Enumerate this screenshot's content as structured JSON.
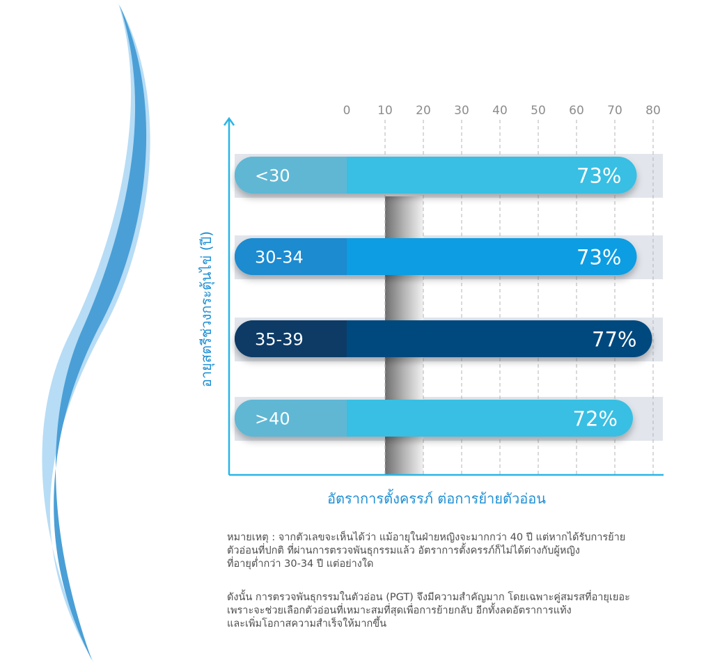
{
  "chart_data": {
    "type": "bar",
    "orientation": "horizontal",
    "categories": [
      "<30",
      "30-34",
      "35-39",
      ">40"
    ],
    "values": [
      73,
      73,
      77,
      72
    ],
    "value_labels": [
      "73%",
      "73%",
      "77%",
      "72%"
    ],
    "xlim": [
      0,
      80
    ],
    "x_ticks": [
      "0",
      "10",
      "20",
      "30",
      "40",
      "50",
      "60",
      "70",
      "80"
    ],
    "xlabel": "อัตราการตั้งครรภ์ ต่อการย้ายตัวอ่อน",
    "ylabel": "อายุสตรีช่วงกระตุ้นไข่ (ปี)",
    "grid": true,
    "colors": {
      "axis": "#29b5e8",
      "tick_text": "#8c8c8c",
      "track": "#e2e6ec",
      "grid": "#b3b3b3",
      "bars": [
        {
          "label_bg": "#5fb7d4",
          "bar": "#38bfe3"
        },
        {
          "label_bg": "#1c8bd0",
          "bar": "#0f9de2"
        },
        {
          "label_bg": "#073a66",
          "bar": "#064a7e"
        },
        {
          "label_bg": "#5fb7d4",
          "bar": "#38bfe3"
        }
      ],
      "wave_outer": "#b7dcf5",
      "wave_inner": "#4a9fd6"
    }
  },
  "notes": {
    "paragraph1": [
      "หมายเหตุ : จากตัวเลขจะเห็นได้ว่า แม้อายุในฝ่ายหญิงจะมากกว่า 40 ปี แต่หากได้รับการย้าย",
      "ตัวอ่อนที่ปกติ ที่ผ่านการตรวจพันธุกรรมแล้ว อัตราการตั้งครรภ์ก็ไม่ได้ต่างกับผู้หญิง",
      "ที่อายุต่ำกว่า 30-34 ปี แต่อย่างใด"
    ],
    "paragraph2": [
      "ดังนั้น การตรวจพันธุกรรมในตัวอ่อน (PGT) จึงมีความสำคัญมาก โดยเฉพาะคู่สมรสที่อายุเยอะ",
      "เพราะจะช่วยเลือกตัวอ่อนที่เหมาะสมที่สุดเพื่อการย้ายกลับ อีกทั้งลดอัตราการแท้ง",
      "และเพิ่มโอกาสความสำเร็จให้มากขึ้น"
    ]
  }
}
